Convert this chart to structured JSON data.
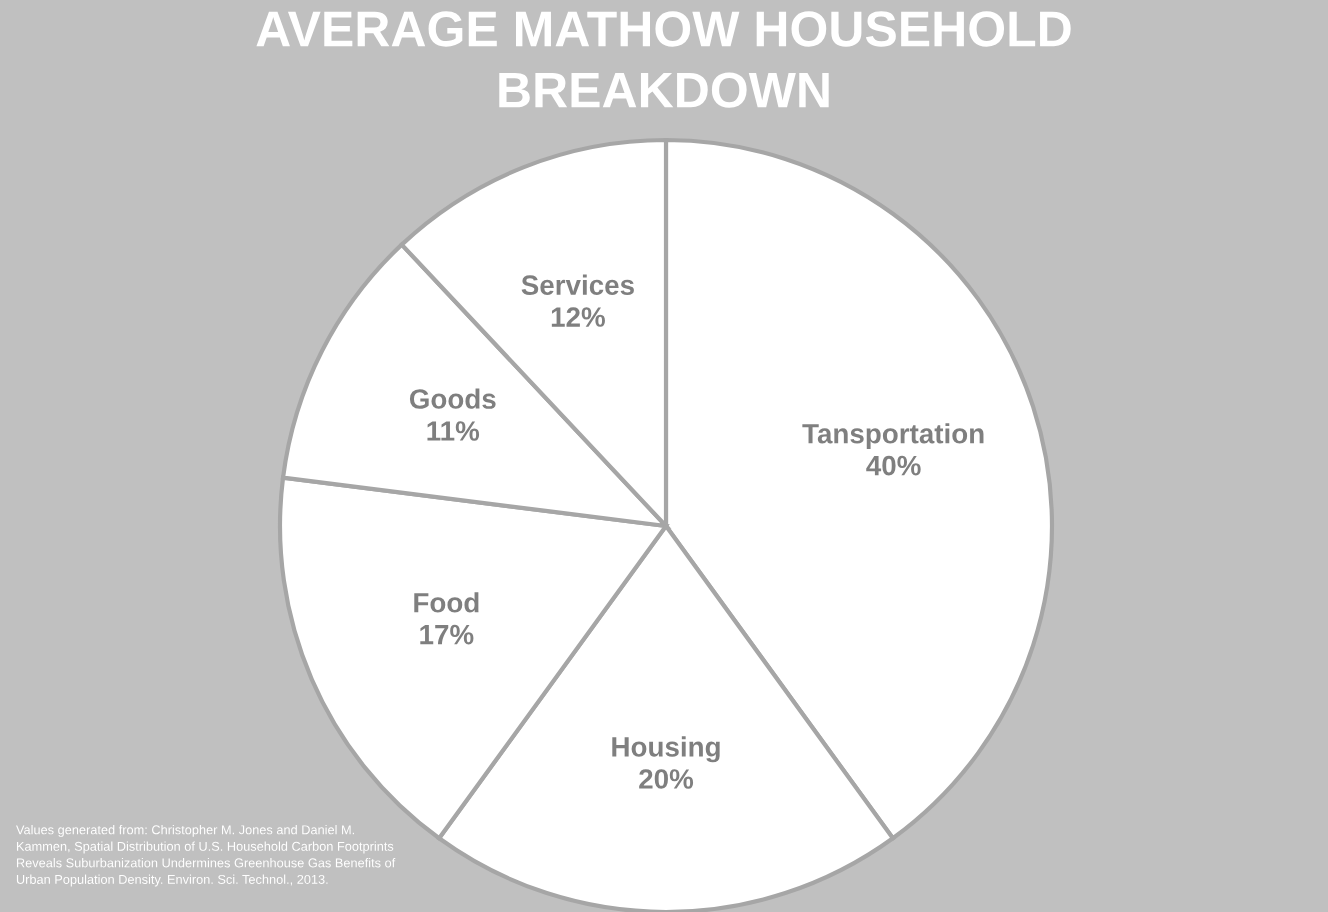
{
  "chart_data": {
    "type": "pie",
    "title": "AVERAGE MATHOW HOUSEHOLD\nBREAKDOWN",
    "categories": [
      "Tansportation",
      "Housing",
      "Food",
      "Goods",
      "Services"
    ],
    "values": [
      40,
      20,
      17,
      11,
      12
    ],
    "colors": [
      "#ffffff",
      "#ffffff",
      "#ffffff",
      "#ffffff",
      "#ffffff"
    ],
    "value_labels": [
      "40%",
      "20%",
      "17%",
      "11%",
      "12%"
    ],
    "annotations": [
      "Values generated from: Christopher M. Jones and Daniel M.\nKammen, Spatial Distribution of U.S. Household Carbon Footprints\nReveals Suburbanization Undermines Greenhouse Gas Benefits of\nUrban Population Density. Environ. Sci. Technol., 2013."
    ]
  }
}
